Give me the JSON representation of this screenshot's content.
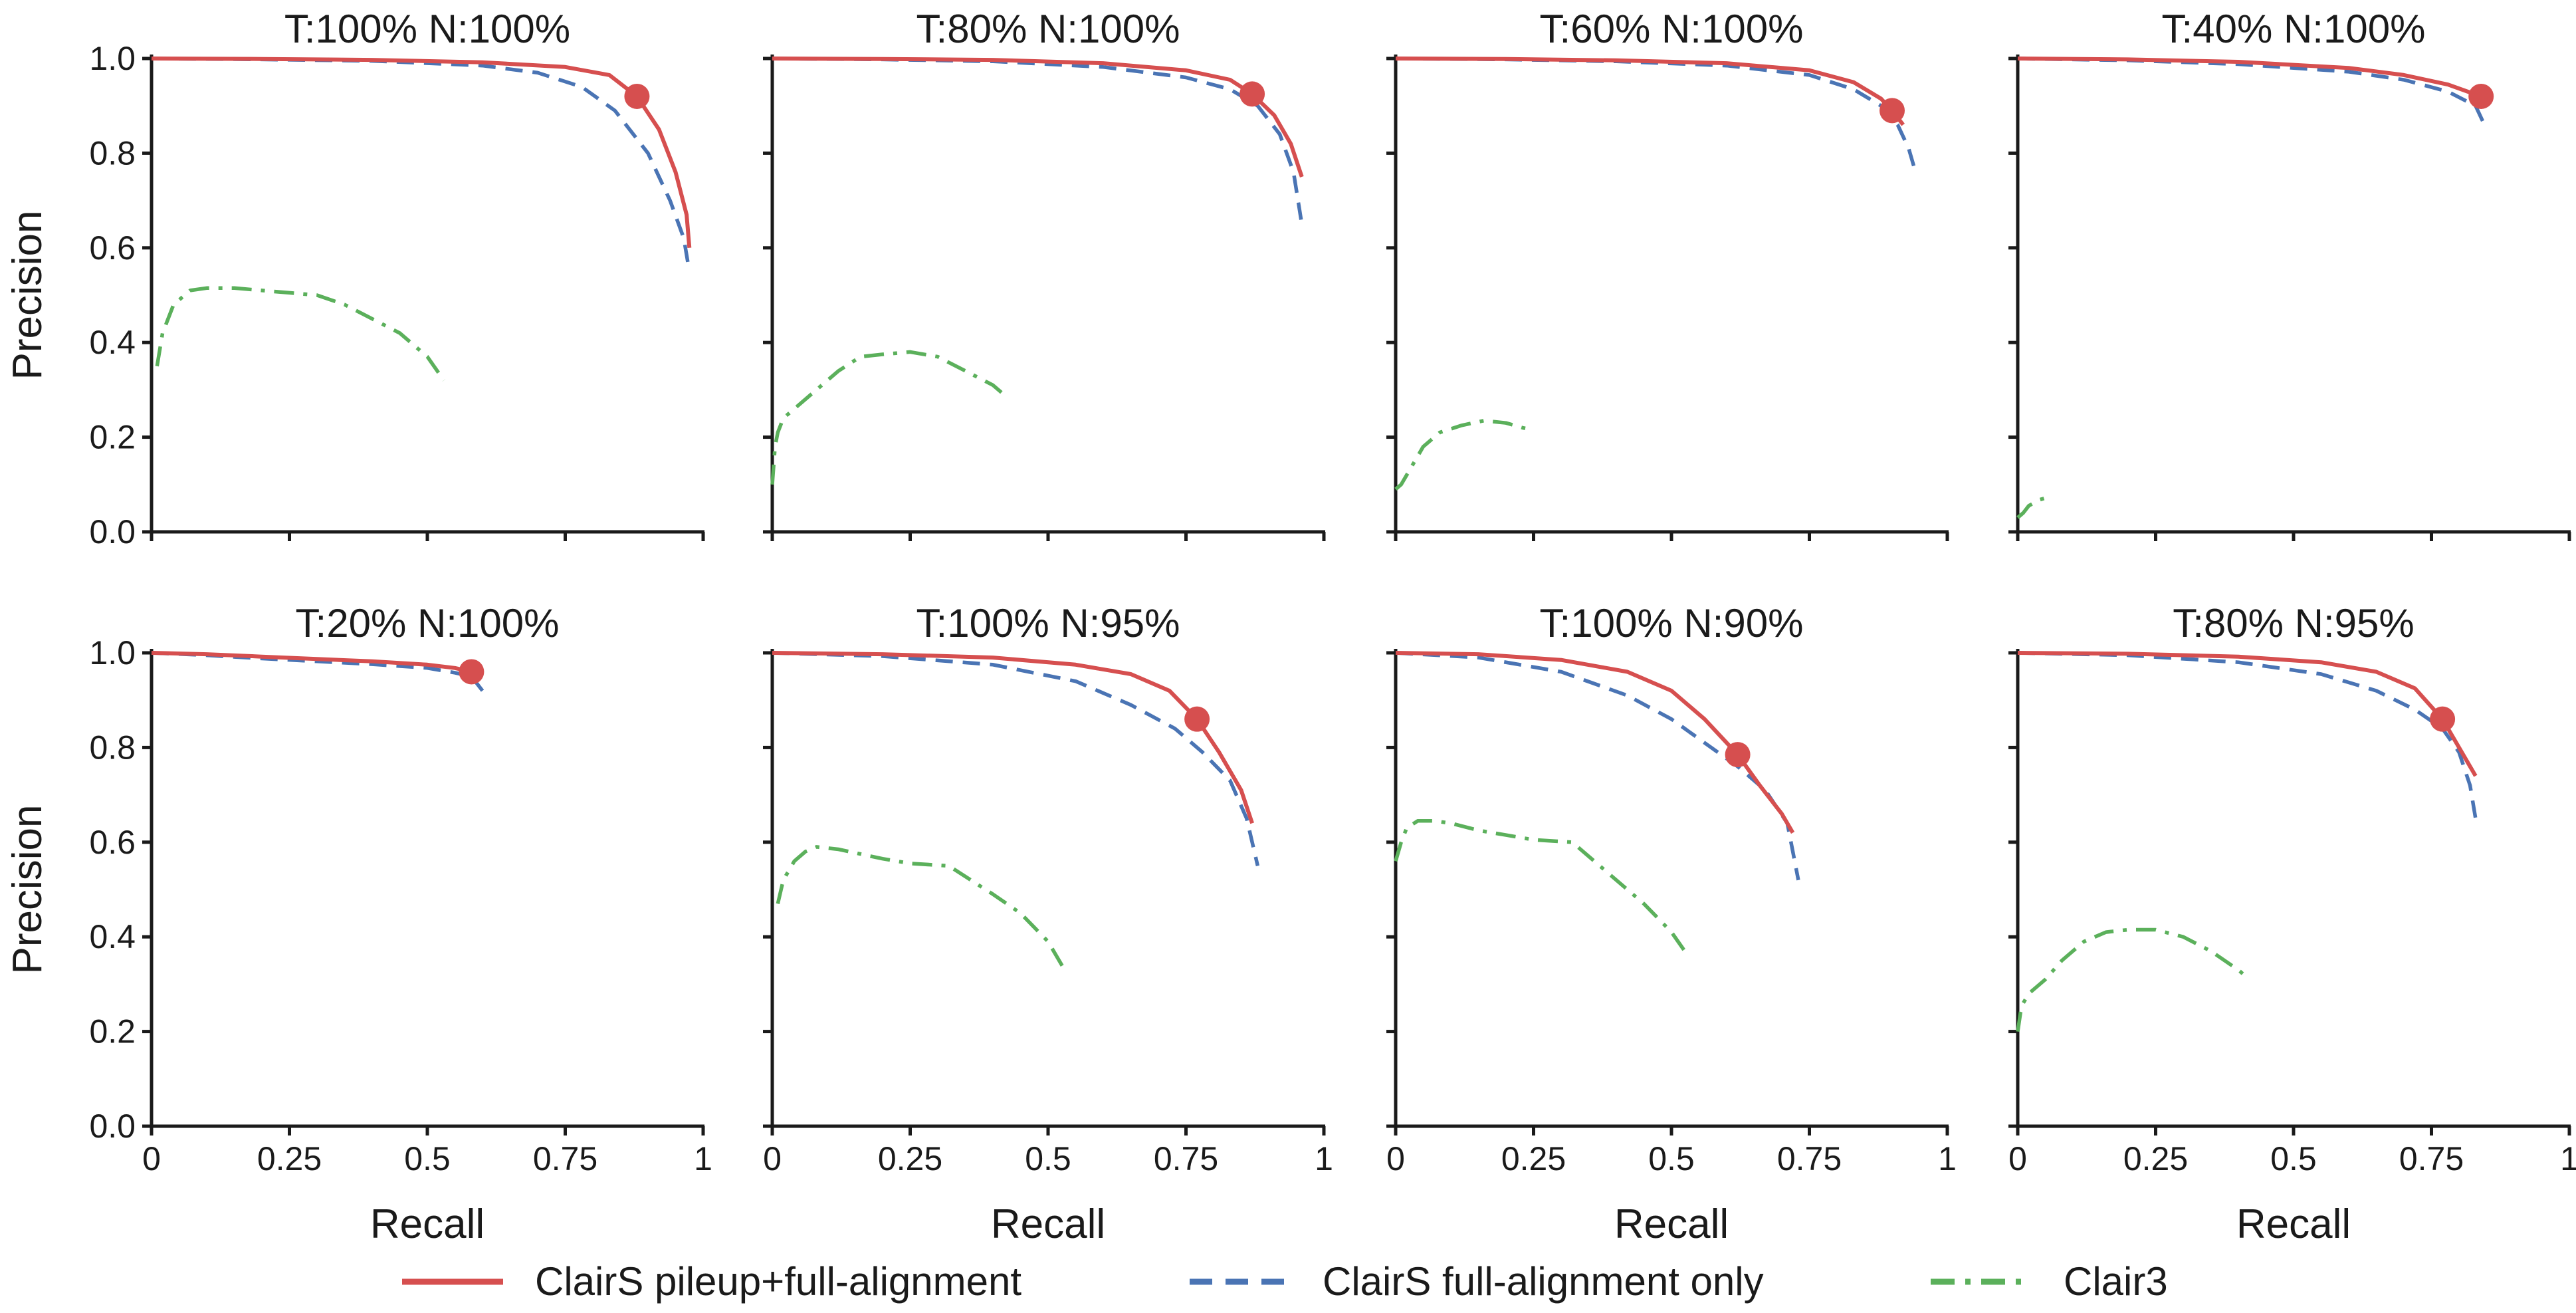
{
  "colors": {
    "pileup_full": "#d64f4f",
    "full_only": "#4a74b4",
    "clair3": "#5bb05b",
    "marker": "#d64f4f"
  },
  "legend": [
    {
      "label": "ClairS pileup+full-alignment",
      "series": "pileup_full",
      "style": "solid"
    },
    {
      "label": "ClairS full-alignment only",
      "series": "full_only",
      "style": "dashed"
    },
    {
      "label": "Clair3",
      "series": "clair3",
      "style": "dashdot"
    }
  ],
  "chart_data": [
    {
      "type": "line",
      "title": "T:100% N:100%",
      "xlabel": "Recall",
      "ylabel": "Precision",
      "xlim": [
        0,
        1
      ],
      "ylim": [
        0,
        1
      ],
      "xticks": [
        "0",
        "0.25",
        "0.5",
        "0.75",
        "1"
      ],
      "yticks": [
        "0.0",
        "0.2",
        "0.4",
        "0.6",
        "0.8",
        "1.0"
      ],
      "marker": {
        "x": 0.88,
        "y": 0.92
      },
      "series": [
        {
          "name": "ClairS pileup+full-alignment",
          "key": "pileup_full",
          "x": [
            0,
            0.2,
            0.4,
            0.6,
            0.75,
            0.83,
            0.88,
            0.92,
            0.95,
            0.97,
            0.975
          ],
          "y": [
            1.0,
            0.999,
            0.997,
            0.992,
            0.982,
            0.965,
            0.92,
            0.85,
            0.76,
            0.67,
            0.6
          ]
        },
        {
          "name": "ClairS full-alignment only",
          "key": "full_only",
          "x": [
            0,
            0.2,
            0.4,
            0.6,
            0.7,
            0.78,
            0.84,
            0.9,
            0.94,
            0.965,
            0.975
          ],
          "y": [
            1.0,
            0.998,
            0.995,
            0.985,
            0.97,
            0.94,
            0.89,
            0.8,
            0.7,
            0.62,
            0.55
          ]
        },
        {
          "name": "Clair3",
          "key": "clair3",
          "x": [
            0.01,
            0.02,
            0.04,
            0.07,
            0.1,
            0.15,
            0.2,
            0.25,
            0.3,
            0.35,
            0.4,
            0.45,
            0.5,
            0.53
          ],
          "y": [
            0.35,
            0.42,
            0.48,
            0.51,
            0.515,
            0.515,
            0.51,
            0.505,
            0.5,
            0.48,
            0.45,
            0.42,
            0.37,
            0.32
          ]
        }
      ]
    },
    {
      "type": "line",
      "title": "T:80% N:100%",
      "xlabel": "Recall",
      "ylabel": "Precision",
      "xlim": [
        0,
        1
      ],
      "ylim": [
        0,
        1
      ],
      "xticks": [
        "0",
        "0.25",
        "0.5",
        "0.75",
        "1"
      ],
      "yticks": [
        "0.0",
        "0.2",
        "0.4",
        "0.6",
        "0.8",
        "1.0"
      ],
      "marker": {
        "x": 0.87,
        "y": 0.925
      },
      "series": [
        {
          "name": "ClairS pileup+full-alignment",
          "key": "pileup_full",
          "x": [
            0,
            0.2,
            0.4,
            0.6,
            0.75,
            0.83,
            0.87,
            0.91,
            0.94,
            0.96
          ],
          "y": [
            1.0,
            0.999,
            0.997,
            0.99,
            0.975,
            0.955,
            0.925,
            0.88,
            0.82,
            0.75
          ]
        },
        {
          "name": "ClairS full-alignment only",
          "key": "full_only",
          "x": [
            0,
            0.2,
            0.4,
            0.6,
            0.75,
            0.83,
            0.88,
            0.92,
            0.945,
            0.96
          ],
          "y": [
            1.0,
            0.998,
            0.994,
            0.982,
            0.96,
            0.935,
            0.9,
            0.84,
            0.76,
            0.65
          ]
        },
        {
          "name": "Clair3",
          "key": "clair3",
          "x": [
            0.0,
            0.005,
            0.01,
            0.02,
            0.04,
            0.08,
            0.12,
            0.16,
            0.2,
            0.25,
            0.3,
            0.35,
            0.4,
            0.42
          ],
          "y": [
            0.1,
            0.18,
            0.21,
            0.24,
            0.26,
            0.3,
            0.34,
            0.37,
            0.375,
            0.38,
            0.37,
            0.34,
            0.31,
            0.29
          ]
        }
      ]
    },
    {
      "type": "line",
      "title": "T:60% N:100%",
      "xlabel": "Recall",
      "ylabel": "Precision",
      "xlim": [
        0,
        1
      ],
      "ylim": [
        0,
        1
      ],
      "xticks": [
        "0",
        "0.25",
        "0.5",
        "0.75",
        "1"
      ],
      "yticks": [
        "0.0",
        "0.2",
        "0.4",
        "0.6",
        "0.8",
        "1.0"
      ],
      "marker": {
        "x": 0.9,
        "y": 0.89
      },
      "series": [
        {
          "name": "ClairS pileup+full-alignment",
          "key": "pileup_full",
          "x": [
            0,
            0.2,
            0.4,
            0.6,
            0.75,
            0.83,
            0.88,
            0.9,
            0.92
          ],
          "y": [
            1.0,
            0.999,
            0.996,
            0.99,
            0.975,
            0.95,
            0.915,
            0.89,
            0.86
          ]
        },
        {
          "name": "ClairS full-alignment only",
          "key": "full_only",
          "x": [
            0,
            0.2,
            0.4,
            0.6,
            0.75,
            0.83,
            0.88,
            0.91,
            0.93,
            0.94
          ],
          "y": [
            1.0,
            0.998,
            0.994,
            0.985,
            0.965,
            0.935,
            0.9,
            0.86,
            0.81,
            0.77
          ]
        },
        {
          "name": "Clair3",
          "key": "clair3",
          "x": [
            0.0,
            0.01,
            0.03,
            0.05,
            0.08,
            0.12,
            0.16,
            0.2,
            0.23,
            0.25
          ],
          "y": [
            0.09,
            0.1,
            0.14,
            0.18,
            0.21,
            0.225,
            0.235,
            0.23,
            0.22,
            0.215
          ]
        }
      ]
    },
    {
      "type": "line",
      "title": "T:40% N:100%",
      "xlabel": "Recall",
      "ylabel": "Precision",
      "xlim": [
        0,
        1
      ],
      "ylim": [
        0,
        1
      ],
      "xticks": [
        "0",
        "0.25",
        "0.5",
        "0.75",
        "1"
      ],
      "yticks": [
        "0.0",
        "0.2",
        "0.4",
        "0.6",
        "0.8",
        "1.0"
      ],
      "marker": {
        "x": 0.84,
        "y": 0.92
      },
      "series": [
        {
          "name": "ClairS pileup+full-alignment",
          "key": "pileup_full",
          "x": [
            0,
            0.2,
            0.4,
            0.6,
            0.7,
            0.78,
            0.84
          ],
          "y": [
            1.0,
            0.998,
            0.993,
            0.98,
            0.965,
            0.945,
            0.92
          ]
        },
        {
          "name": "ClairS full-alignment only",
          "key": "full_only",
          "x": [
            0,
            0.2,
            0.4,
            0.6,
            0.7,
            0.78,
            0.83,
            0.85
          ],
          "y": [
            1.0,
            0.996,
            0.988,
            0.972,
            0.955,
            0.93,
            0.9,
            0.85
          ]
        },
        {
          "name": "Clair3",
          "key": "clair3",
          "x": [
            0.0,
            0.01,
            0.02,
            0.04,
            0.06
          ],
          "y": [
            0.03,
            0.04,
            0.055,
            0.068,
            0.075
          ]
        }
      ]
    },
    {
      "type": "line",
      "title": "T:20% N:100%",
      "xlabel": "Recall",
      "ylabel": "Precision",
      "xlim": [
        0,
        1
      ],
      "ylim": [
        0,
        1
      ],
      "xticks": [
        "0",
        "0.25",
        "0.5",
        "0.75",
        "1"
      ],
      "yticks": [
        "0.0",
        "0.2",
        "0.4",
        "0.6",
        "0.8",
        "1.0"
      ],
      "marker": {
        "x": 0.58,
        "y": 0.96
      },
      "series": [
        {
          "name": "ClairS pileup+full-alignment",
          "key": "pileup_full",
          "x": [
            0,
            0.1,
            0.2,
            0.3,
            0.4,
            0.5,
            0.55,
            0.58,
            0.59
          ],
          "y": [
            1.0,
            0.997,
            0.992,
            0.987,
            0.982,
            0.975,
            0.968,
            0.96,
            0.955
          ]
        },
        {
          "name": "ClairS full-alignment only",
          "key": "full_only",
          "x": [
            0,
            0.1,
            0.2,
            0.3,
            0.4,
            0.5,
            0.55,
            0.58,
            0.6
          ],
          "y": [
            1.0,
            0.995,
            0.988,
            0.982,
            0.976,
            0.968,
            0.958,
            0.95,
            0.92
          ]
        }
      ]
    },
    {
      "type": "line",
      "title": "T:100% N:95%",
      "xlabel": "Recall",
      "ylabel": "Precision",
      "xlim": [
        0,
        1
      ],
      "ylim": [
        0,
        1
      ],
      "xticks": [
        "0",
        "0.25",
        "0.5",
        "0.75",
        "1"
      ],
      "yticks": [
        "0.0",
        "0.2",
        "0.4",
        "0.6",
        "0.8",
        "1.0"
      ],
      "marker": {
        "x": 0.77,
        "y": 0.86
      },
      "series": [
        {
          "name": "ClairS pileup+full-alignment",
          "key": "pileup_full",
          "x": [
            0,
            0.2,
            0.4,
            0.55,
            0.65,
            0.72,
            0.77,
            0.81,
            0.85,
            0.87
          ],
          "y": [
            1.0,
            0.997,
            0.99,
            0.975,
            0.955,
            0.92,
            0.86,
            0.79,
            0.71,
            0.64
          ]
        },
        {
          "name": "ClairS full-alignment only",
          "key": "full_only",
          "x": [
            0,
            0.2,
            0.4,
            0.55,
            0.65,
            0.73,
            0.78,
            0.83,
            0.86,
            0.88
          ],
          "y": [
            1.0,
            0.993,
            0.975,
            0.94,
            0.89,
            0.84,
            0.79,
            0.73,
            0.65,
            0.55
          ]
        },
        {
          "name": "Clair3",
          "key": "clair3",
          "x": [
            0.01,
            0.02,
            0.04,
            0.06,
            0.08,
            0.12,
            0.16,
            0.2,
            0.25,
            0.32,
            0.36,
            0.4,
            0.45,
            0.5,
            0.53
          ],
          "y": [
            0.47,
            0.52,
            0.56,
            0.58,
            0.59,
            0.585,
            0.575,
            0.565,
            0.555,
            0.55,
            0.52,
            0.49,
            0.45,
            0.39,
            0.33
          ]
        }
      ]
    },
    {
      "type": "line",
      "title": "T:100% N:90%",
      "xlabel": "Recall",
      "ylabel": "Precision",
      "xlim": [
        0,
        1
      ],
      "ylim": [
        0,
        1
      ],
      "xticks": [
        "0",
        "0.25",
        "0.5",
        "0.75",
        "1"
      ],
      "yticks": [
        "0.0",
        "0.2",
        "0.4",
        "0.6",
        "0.8",
        "1.0"
      ],
      "marker": {
        "x": 0.62,
        "y": 0.785
      },
      "series": [
        {
          "name": "ClairS pileup+full-alignment",
          "key": "pileup_full",
          "x": [
            0,
            0.15,
            0.3,
            0.42,
            0.5,
            0.56,
            0.62,
            0.66,
            0.7,
            0.72
          ],
          "y": [
            1.0,
            0.997,
            0.985,
            0.96,
            0.92,
            0.86,
            0.785,
            0.72,
            0.66,
            0.62
          ]
        },
        {
          "name": "ClairS full-alignment only",
          "key": "full_only",
          "x": [
            0,
            0.15,
            0.3,
            0.42,
            0.5,
            0.56,
            0.62,
            0.67,
            0.71,
            0.73
          ],
          "y": [
            1.0,
            0.99,
            0.96,
            0.91,
            0.86,
            0.81,
            0.76,
            0.71,
            0.64,
            0.52
          ]
        },
        {
          "name": "Clair3",
          "key": "clair3",
          "x": [
            0.0,
            0.01,
            0.02,
            0.04,
            0.07,
            0.1,
            0.15,
            0.2,
            0.25,
            0.32,
            0.36,
            0.4,
            0.45,
            0.5,
            0.53
          ],
          "y": [
            0.56,
            0.6,
            0.63,
            0.645,
            0.645,
            0.64,
            0.625,
            0.615,
            0.605,
            0.6,
            0.56,
            0.52,
            0.47,
            0.41,
            0.36
          ]
        }
      ]
    },
    {
      "type": "line",
      "title": "T:80% N:95%",
      "xlabel": "Recall",
      "ylabel": "Precision",
      "xlim": [
        0,
        1
      ],
      "ylim": [
        0,
        1
      ],
      "xticks": [
        "0",
        "0.25",
        "0.5",
        "0.75",
        "1"
      ],
      "yticks": [
        "0.0",
        "0.2",
        "0.4",
        "0.6",
        "0.8",
        "1.0"
      ],
      "marker": {
        "x": 0.77,
        "y": 0.86
      },
      "series": [
        {
          "name": "ClairS pileup+full-alignment",
          "key": "pileup_full",
          "x": [
            0,
            0.2,
            0.4,
            0.55,
            0.65,
            0.72,
            0.77,
            0.8,
            0.83
          ],
          "y": [
            1.0,
            0.998,
            0.992,
            0.98,
            0.96,
            0.925,
            0.86,
            0.8,
            0.74
          ]
        },
        {
          "name": "ClairS full-alignment only",
          "key": "full_only",
          "x": [
            0,
            0.2,
            0.4,
            0.55,
            0.65,
            0.72,
            0.77,
            0.8,
            0.82,
            0.83
          ],
          "y": [
            1.0,
            0.995,
            0.98,
            0.955,
            0.92,
            0.88,
            0.84,
            0.79,
            0.72,
            0.65
          ]
        },
        {
          "name": "Clair3",
          "key": "clair3",
          "x": [
            0.0,
            0.005,
            0.01,
            0.02,
            0.05,
            0.08,
            0.12,
            0.16,
            0.2,
            0.25,
            0.3,
            0.35,
            0.4,
            0.42
          ],
          "y": [
            0.2,
            0.24,
            0.26,
            0.28,
            0.31,
            0.35,
            0.39,
            0.41,
            0.415,
            0.415,
            0.4,
            0.37,
            0.33,
            0.31
          ]
        }
      ]
    }
  ]
}
